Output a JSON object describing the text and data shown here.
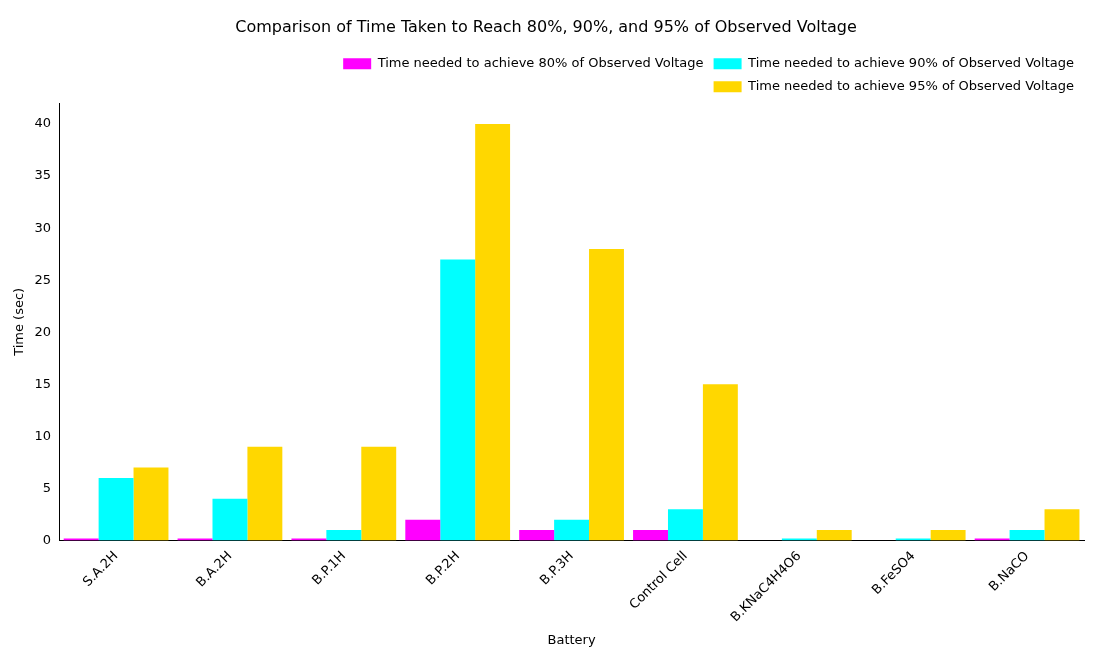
{
  "chart_data": {
    "type": "bar",
    "title": "Comparison of Time Taken to Reach 80%, 90%, and 95% of Observed Voltage",
    "xlabel": "Battery",
    "ylabel": "Time (sec)",
    "categories": [
      "S.A.2H",
      "B.A.2H",
      "B.P.1H",
      "B.P.2H",
      "B.P.3H",
      "Control Cell",
      "B.KNaC4H4O6",
      "B.FeSO4",
      "B.NaCO"
    ],
    "series": [
      {
        "name": "Time needed to achieve 80% of Observed Voltage",
        "color": "#ff00ff",
        "values": [
          0.2,
          0.2,
          0.2,
          2,
          1,
          1,
          0,
          0,
          0.2
        ]
      },
      {
        "name": "Time needed to achieve 90% of Observed Voltage",
        "color": "#00ffff",
        "values": [
          6,
          4,
          1,
          27,
          2,
          3,
          0.2,
          0.2,
          1
        ]
      },
      {
        "name": "Time needed to achieve 95% of Observed Voltage",
        "color": "#ffd700",
        "values": [
          7,
          9,
          9,
          40,
          28,
          15,
          1,
          1,
          3
        ]
      }
    ],
    "ylim": [
      0,
      42
    ],
    "yticks": [
      0,
      5,
      10,
      15,
      20,
      25,
      30,
      35,
      40
    ],
    "grid": false,
    "legend": "top right"
  }
}
